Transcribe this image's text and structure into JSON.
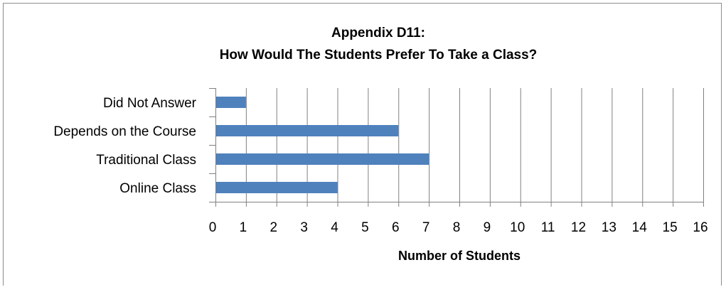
{
  "chart_data": {
    "type": "bar",
    "orientation": "horizontal",
    "title_lines": [
      "Appendix D11:",
      "How Would The Students Prefer To Take a Class?"
    ],
    "categories": [
      "Online Class",
      "Traditional Class",
      "Depends on the Course",
      "Did Not Answer"
    ],
    "values": [
      4,
      7,
      6,
      1
    ],
    "xlabel": "Number of Students",
    "ylabel": "",
    "xlim": [
      0,
      16
    ],
    "xticks": [
      "0",
      "1",
      "2",
      "3",
      "4",
      "5",
      "6",
      "7",
      "8",
      "9",
      "10",
      "11",
      "12",
      "13",
      "14",
      "15",
      "16"
    ],
    "grid": "vertical",
    "legend": "none",
    "colors": {
      "bar": "#4f81bd",
      "grid": "#808080",
      "axis": "#808080"
    }
  }
}
